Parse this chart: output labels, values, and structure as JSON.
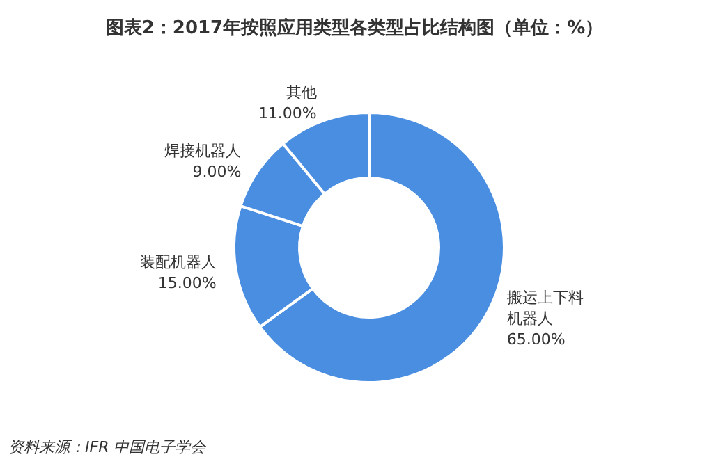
{
  "chart_data": {
    "type": "donut",
    "title": "图表2：2017年按照应用类型各类型占比结构图（单位：%）",
    "categories": [
      "搬运上下料机器人",
      "装配机器人",
      "焊接机器人",
      "其他"
    ],
    "values": [
      65,
      15,
      9,
      11
    ],
    "value_labels": [
      "65.00%",
      "15.00%",
      "9.00%",
      "11.00%"
    ],
    "colors": [
      "#4a8ee2",
      "#4a8ee2",
      "#4a8ee2",
      "#4a8ee2"
    ],
    "annotations": [
      "资料来源：IFR 中国电子学会"
    ]
  }
}
